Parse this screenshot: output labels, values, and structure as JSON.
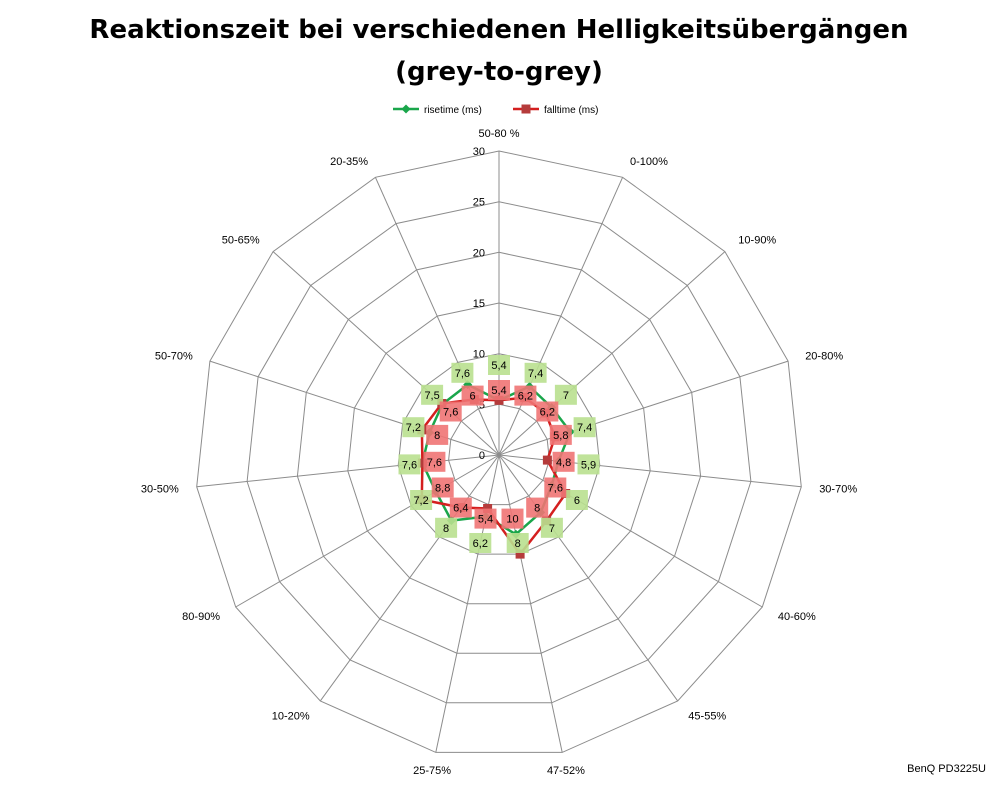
{
  "chart_data": {
    "type": "radar",
    "title_lines": [
      "Reaktionszeit bei verschiedenen Helligkeitsübergängen",
      "(grey-to-grey)"
    ],
    "categories": [
      "50-80 %",
      "0-100%",
      "10-90%",
      "20-80%",
      "30-70%",
      "40-60%",
      "45-55%",
      "47-52%",
      "25-75%",
      "10-20%",
      "80-90%",
      "30-50%",
      "50-70%",
      "50-65%",
      "20-35%"
    ],
    "rlim": [
      0,
      30
    ],
    "ticks": [
      0,
      5,
      10,
      15,
      20,
      25,
      30
    ],
    "grid": true,
    "legend_position": "top",
    "series": [
      {
        "name": "risetime (ms)",
        "color": "#1aa64b",
        "label_bg": "#b9e08f",
        "values": [
          5.4,
          7.4,
          7,
          7.4,
          5.9,
          6,
          7,
          8,
          6.2,
          8,
          7.2,
          7.6,
          7.2,
          7.5,
          7.6
        ],
        "labels": [
          "5,4",
          "7,4",
          "7",
          "7,4",
          "5,9",
          "6",
          "7",
          "8",
          "6,2",
          "8",
          "7,2",
          "7,6",
          "7,2",
          "7,5",
          "7,6"
        ]
      },
      {
        "name": "falltime (ms)",
        "color": "#d41f1f",
        "label_bg": "#f07474",
        "values": [
          5.4,
          6.2,
          6.2,
          5.8,
          4.8,
          7.6,
          8,
          10,
          5.4,
          6.4,
          8.8,
          7.6,
          8,
          7.6,
          6
        ],
        "labels": [
          "5,4",
          "6,2",
          "6,2",
          "5,8",
          "4,8",
          "7,6",
          "8",
          "10",
          "5,4",
          "6,4",
          "8,8",
          "7,6",
          "8",
          "7,6",
          "6"
        ]
      }
    ]
  },
  "footer": {
    "credit": "BenQ PD3225U"
  }
}
